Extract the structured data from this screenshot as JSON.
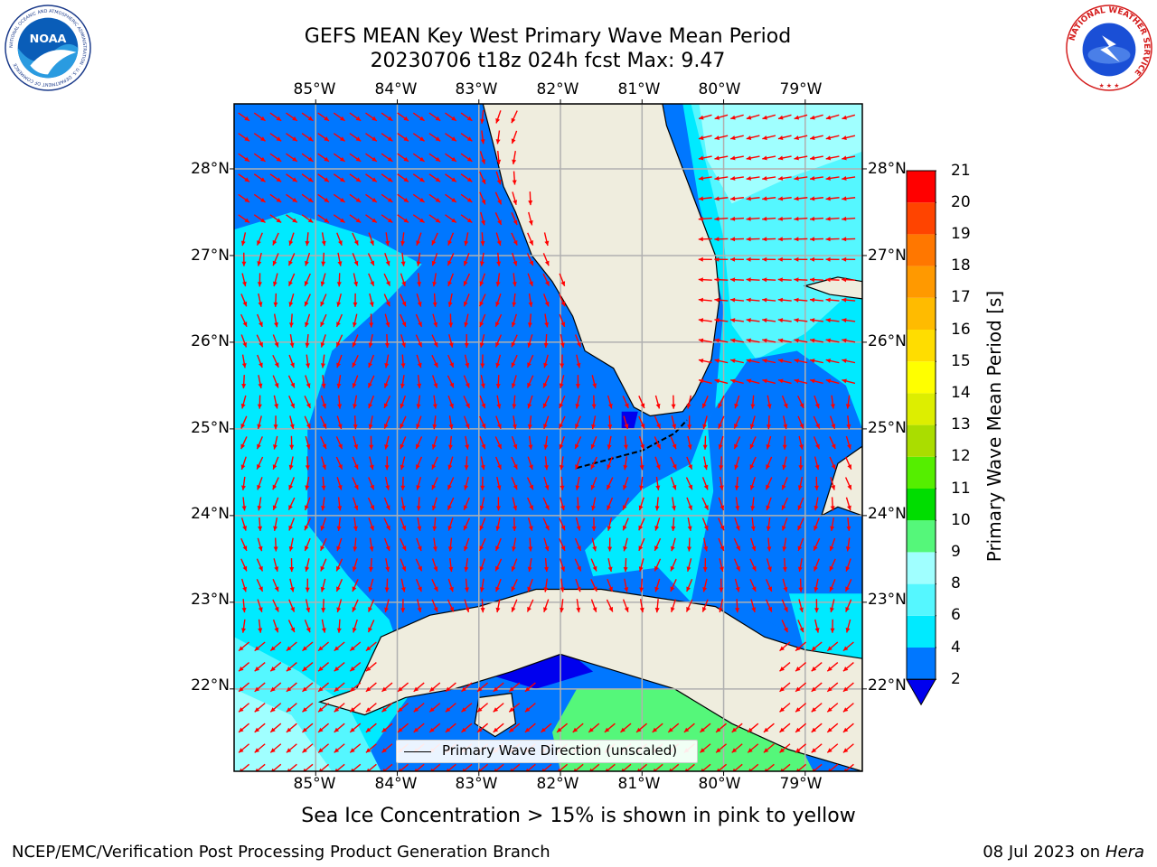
{
  "title": {
    "line1": "GEFS MEAN Key West Primary Wave Mean Period",
    "line2": "20230706 t18z 024h fcst    Max: 9.47"
  },
  "logos": {
    "noaa_text": "NOAA",
    "noaa_ring_text": "NATIONAL OCEANIC AND ATMOSPHERIC ADMINISTRATION · U.S. DEPARTMENT OF COMMERCE",
    "nws_ring_text": "NATIONAL WEATHER SERVICE"
  },
  "map": {
    "lon_labels": [
      "85°W",
      "84°W",
      "83°W",
      "82°W",
      "81°W",
      "80°W",
      "79°W"
    ],
    "lat_labels": [
      "28°N",
      "27°N",
      "26°N",
      "25°N",
      "24°N",
      "23°N",
      "22°N"
    ],
    "lon_range": [
      -86.0,
      -78.3
    ],
    "lat_range": [
      21.05,
      28.75
    ],
    "grid": true,
    "legend_text": "Primary Wave Direction (unscaled)",
    "arrow_color": "#ff0000",
    "land_color": "#efedde"
  },
  "colorbar": {
    "label": "Primary Wave Mean Period [s]",
    "ticks": [
      "2",
      "4",
      "6",
      "8",
      "9",
      "10",
      "11",
      "12",
      "13",
      "14",
      "15",
      "16",
      "17",
      "18",
      "19",
      "20",
      "21"
    ],
    "colors": [
      "#0077ff",
      "#00eaff",
      "#55f7ff",
      "#a0ffff",
      "#55f77a",
      "#00dd00",
      "#55ee00",
      "#aadd00",
      "#ddee00",
      "#ffff00",
      "#ffdd00",
      "#ffbb00",
      "#ff9900",
      "#ff7700",
      "#ff4400",
      "#ff0000"
    ],
    "under_color": "#0000ee"
  },
  "sea_ice_note": "Sea Ice Concentration > 15% is shown in pink to yellow",
  "footer": {
    "left": "NCEP/EMC/Verification Post Processing Product Generation Branch",
    "right_date": "08 Jul 2023 on ",
    "right_machine": "Hera"
  }
}
